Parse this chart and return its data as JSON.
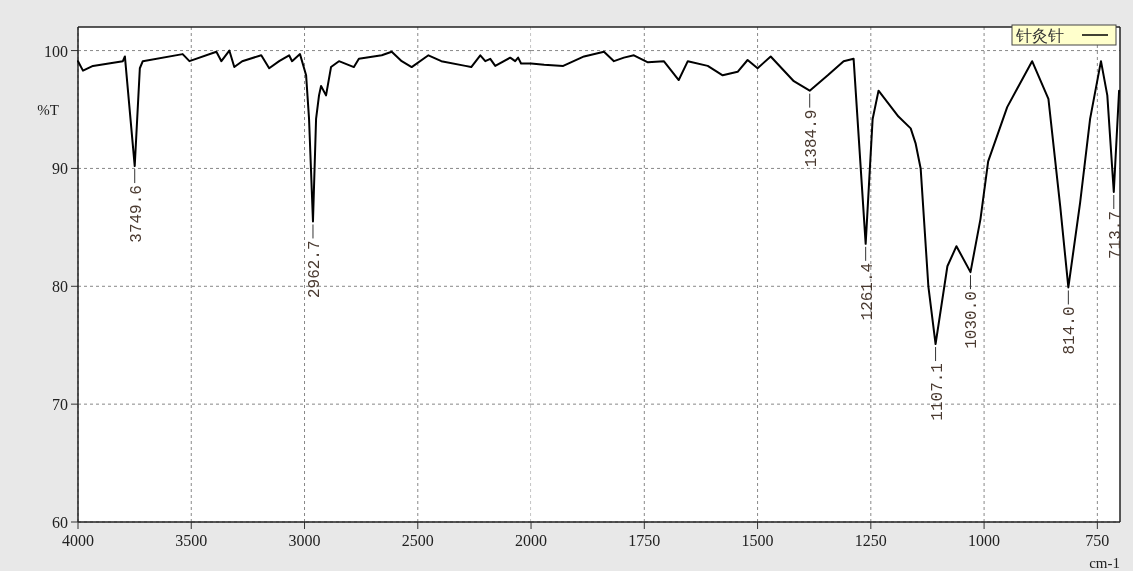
{
  "chart_data": [
    {
      "type": "line",
      "ylabel": "%T",
      "xlim": [
        4000,
        2000
      ],
      "ylim": [
        60,
        102
      ],
      "xticks": [
        4000,
        3500,
        3000,
        2500,
        2000
      ],
      "yticks": [
        60,
        70,
        80,
        90,
        100
      ],
      "grid": true,
      "marker": "none",
      "line_style": "solid",
      "series": [
        {
          "color": "#000000",
          "x": [
            4000,
            3978,
            3934,
            3802,
            3793,
            3749.6,
            3727,
            3714,
            3538,
            3508,
            3389,
            3367,
            3332,
            3310,
            3275,
            3191,
            3156,
            3112,
            3068,
            3055,
            3020,
            2993,
            2980,
            2962.7,
            2949,
            2936,
            2927,
            2905,
            2883,
            2848,
            2782,
            2760,
            2659,
            2615,
            2571,
            2527,
            2453,
            2396,
            2290,
            2264,
            2224,
            2202,
            2180,
            2158,
            2092,
            2070,
            2057,
            2044,
            2000
          ],
          "values": [
            99.1,
            98.3,
            98.7,
            99.1,
            99.5,
            90.2,
            98.5,
            99.1,
            99.7,
            99.1,
            99.9,
            99.1,
            100.0,
            98.6,
            99.1,
            99.6,
            98.5,
            99.1,
            99.6,
            99.1,
            99.7,
            97.9,
            94.2,
            85.5,
            94.2,
            96.2,
            97.0,
            96.2,
            98.6,
            99.1,
            98.6,
            99.3,
            99.6,
            99.9,
            99.1,
            98.6,
            99.6,
            99.1,
            98.7,
            98.6,
            99.6,
            99.1,
            99.3,
            98.7,
            99.4,
            99.1,
            99.4,
            98.9,
            98.9
          ]
        }
      ],
      "annotations": [
        {
          "text": "3749.6",
          "x": 3749.6,
          "y": 90.2
        },
        {
          "text": "2962.7",
          "x": 2962.7,
          "y": 85.5
        }
      ]
    },
    {
      "type": "line",
      "xlabel": "cm-1",
      "xlim": [
        2000,
        700
      ],
      "ylim": [
        60,
        102
      ],
      "xticks": [
        1750,
        1500,
        1250,
        1000,
        750
      ],
      "yticks": [
        60,
        70,
        80,
        90,
        100
      ],
      "tick_labels": "x",
      "grid": true,
      "legend": "top right",
      "marker": "none",
      "line_style": "solid",
      "series": [
        {
          "name": "针灸针",
          "color": "#000000",
          "x": [
            2000,
            1971,
            1929,
            1883,
            1839,
            1817,
            1795,
            1773,
            1742,
            1707,
            1674,
            1654,
            1610,
            1577,
            1544,
            1522,
            1500,
            1471,
            1420,
            1384.9,
            1345,
            1310,
            1288,
            1261.4,
            1246,
            1233,
            1189,
            1162,
            1151,
            1140,
            1123,
            1107.1,
            1081,
            1061,
            1030.0,
            1008,
            991,
            949,
            894,
            858,
            832,
            814.0,
            788,
            766,
            742,
            728,
            713.7,
            702
          ],
          "values": [
            98.9,
            98.8,
            98.7,
            99.5,
            99.9,
            99.1,
            99.4,
            99.6,
            99.0,
            99.1,
            97.5,
            99.1,
            98.7,
            97.9,
            98.2,
            99.2,
            98.5,
            99.5,
            97.4,
            96.6,
            97.9,
            99.1,
            99.3,
            83.6,
            94.2,
            96.6,
            94.4,
            93.4,
            92.1,
            90.0,
            80.0,
            75.1,
            81.7,
            83.4,
            81.2,
            85.7,
            90.6,
            95.2,
            99.1,
            95.9,
            86.8,
            79.9,
            87.1,
            94.2,
            99.1,
            96.2,
            88.0,
            96.6
          ]
        }
      ],
      "annotations": [
        {
          "text": "1384.9",
          "x": 1384.9,
          "y": 96.6
        },
        {
          "text": "1261.4",
          "x": 1261.4,
          "y": 83.6
        },
        {
          "text": "1107.1",
          "x": 1107.1,
          "y": 75.1
        },
        {
          "text": "1030.0",
          "x": 1030.0,
          "y": 81.2
        },
        {
          "text": "814.0",
          "x": 814.0,
          "y": 79.9
        },
        {
          "text": "713.7",
          "x": 713.7,
          "y": 88.0
        }
      ]
    }
  ]
}
